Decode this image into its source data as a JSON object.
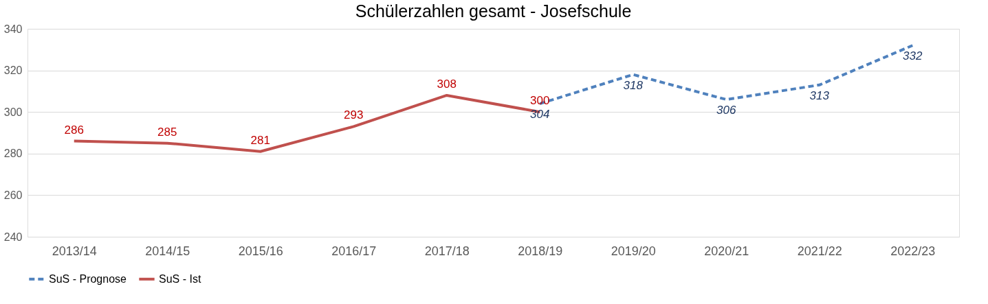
{
  "chart_data": {
    "type": "line",
    "title": "Schülerzahlen gesamt - Josefschule",
    "categories": [
      "2013/14",
      "2014/15",
      "2015/16",
      "2016/17",
      "2017/18",
      "2018/19",
      "2019/20",
      "2020/21",
      "2021/22",
      "2022/23"
    ],
    "series": [
      {
        "name": "SuS - Prognose",
        "color": "#4f81bd",
        "line_style": "dashed",
        "values": [
          null,
          null,
          null,
          null,
          null,
          304,
          318,
          306,
          313,
          332
        ]
      },
      {
        "name": "SuS - Ist",
        "color": "#c0504d",
        "line_style": "solid",
        "values": [
          286,
          285,
          281,
          293,
          308,
          300,
          null,
          null,
          null,
          null
        ]
      }
    ],
    "ylim": [
      240,
      340
    ],
    "yticks": [
      240,
      260,
      280,
      300,
      320,
      340
    ],
    "grid": "y",
    "legend": "bottom",
    "marker": "none",
    "data_labels": true
  }
}
